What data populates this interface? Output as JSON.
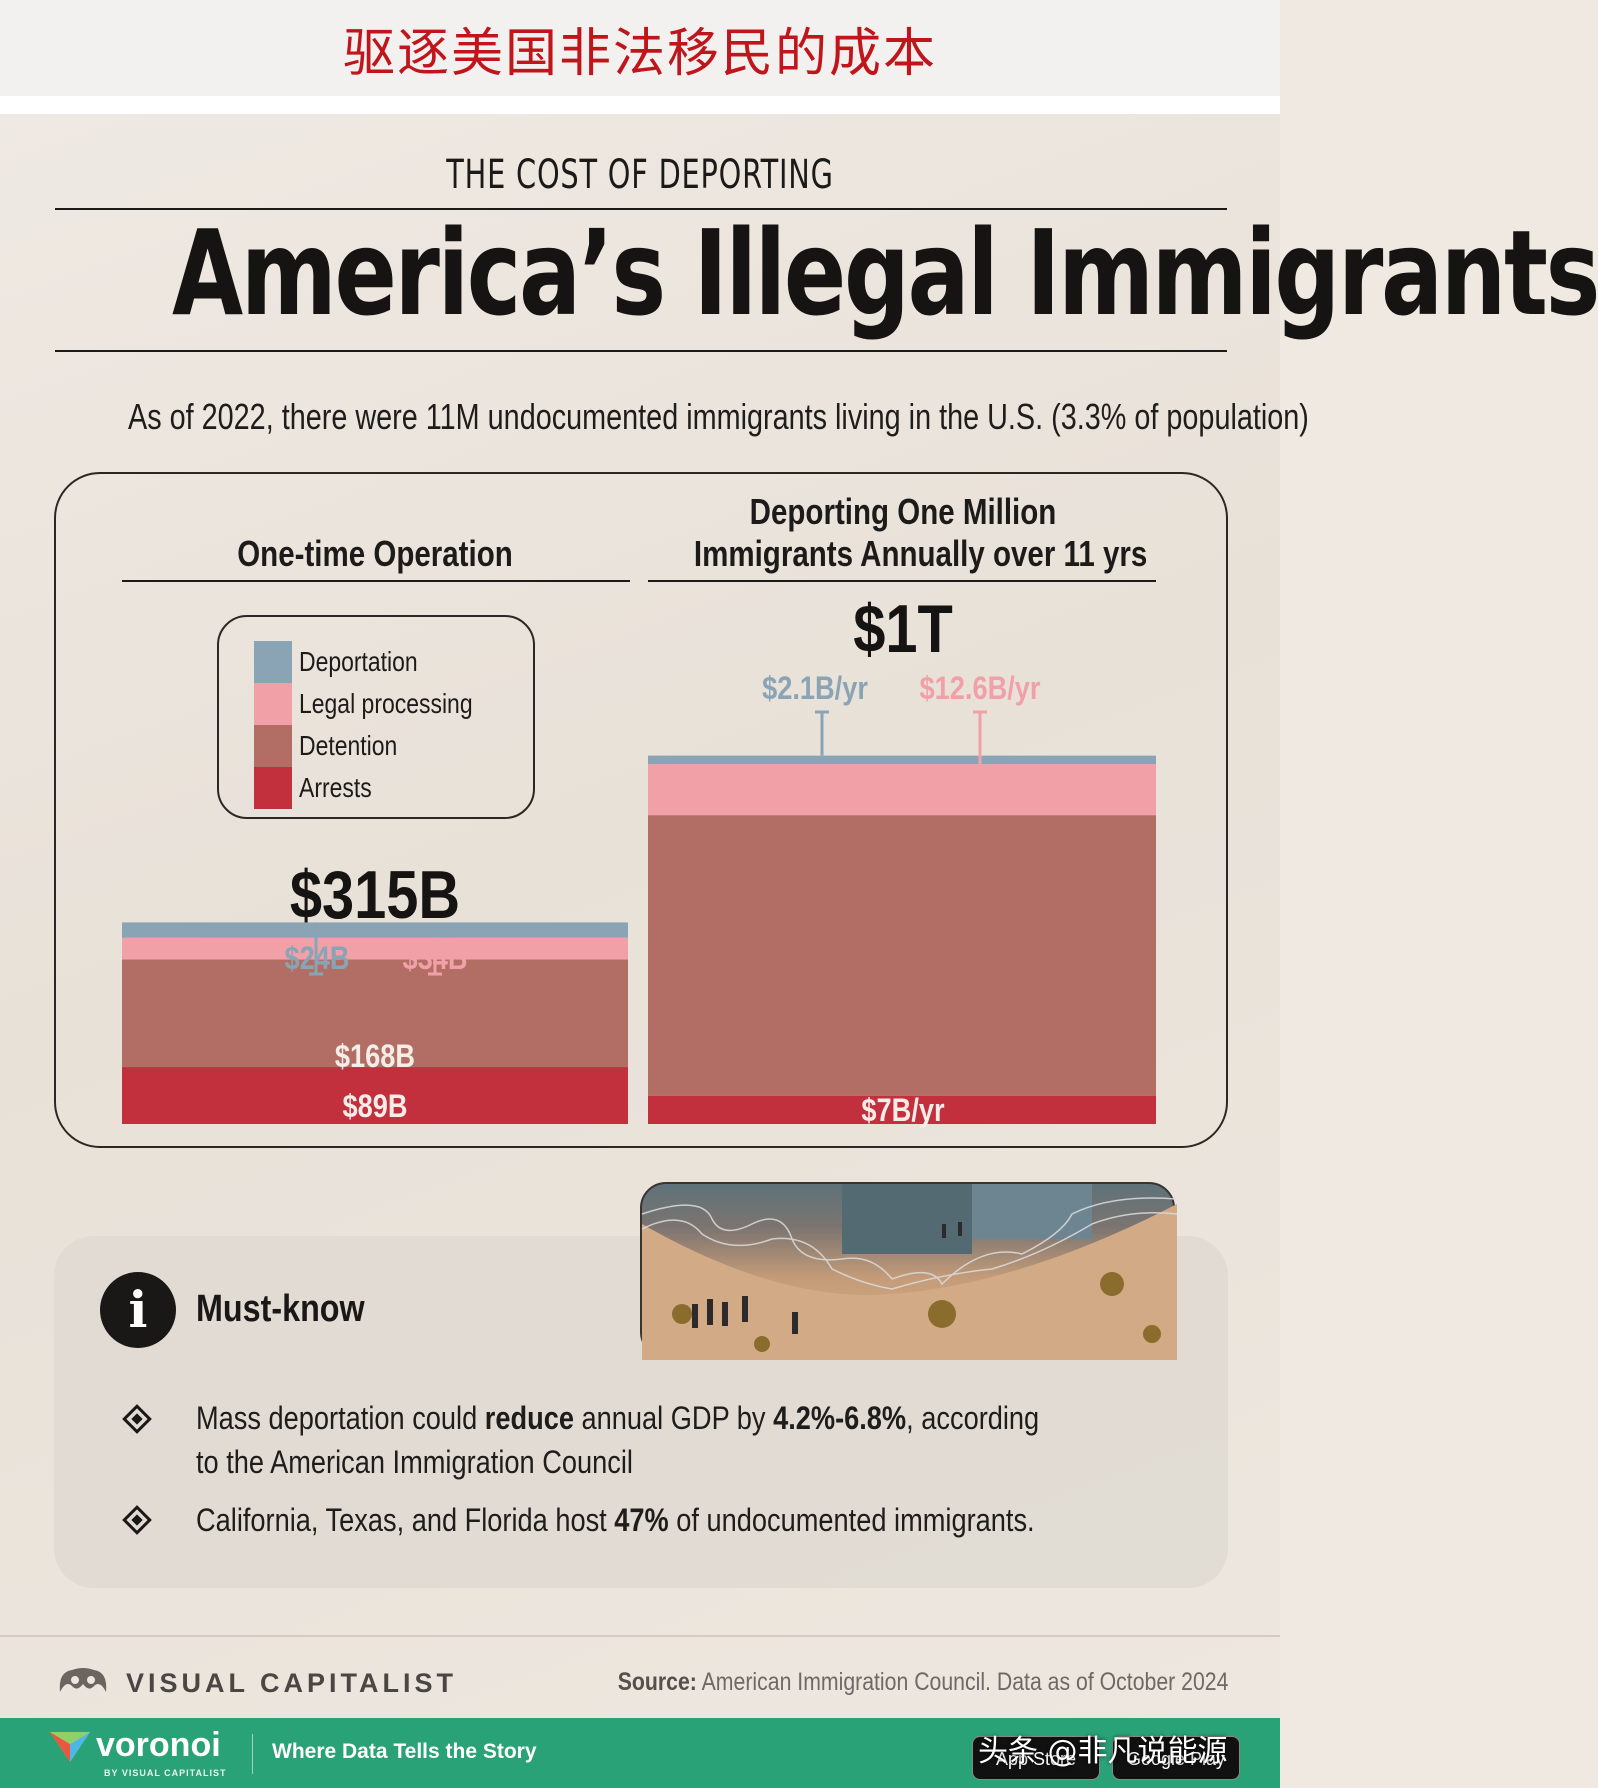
{
  "top_banner": "驱逐美国非法移民的成本",
  "kicker": "THE COST OF DEPORTING",
  "headline": "America’s Illegal Immigrants",
  "subtitle": "As of 2022, there were 11M undocumented immigrants living in the U.S. (3.3% of population)",
  "colors": {
    "deportation": "#8aa4b6",
    "legal_processing": "#f2a0a8",
    "detention": "#b26e64",
    "arrests": "#c22f3d",
    "topbar_text": "#c0151a",
    "green_bar": "#2aa278"
  },
  "legend": [
    {
      "key": "deportation",
      "label": "Deportation"
    },
    {
      "key": "legal_processing",
      "label": "Legal processing"
    },
    {
      "key": "detention",
      "label": "Detention"
    },
    {
      "key": "arrests",
      "label": "Arrests"
    }
  ],
  "chart_data": [
    {
      "type": "bar",
      "stacked": true,
      "title": "One-time Operation",
      "total_label": "$315B",
      "total_billion_usd": 315,
      "series": [
        {
          "name": "Deportation",
          "value_billion_usd": 24,
          "label": "$24B"
        },
        {
          "name": "Legal processing",
          "value_billion_usd": 34,
          "label": "$34B"
        },
        {
          "name": "Detention",
          "value_billion_usd": 168,
          "label": "$168B"
        },
        {
          "name": "Arrests",
          "value_billion_usd": 89,
          "label": "$89B"
        }
      ]
    },
    {
      "type": "bar",
      "stacked": true,
      "title_line1": "Deporting One Million",
      "title_line2": "Immigrants Annually over 11 yrs",
      "total_label": "$1T",
      "total_billion_usd": 1000,
      "series": [
        {
          "name": "Deportation",
          "label": "$2.1B/yr",
          "value_billion_usd_per_year": 2.1
        },
        {
          "name": "Legal processing",
          "label": "$12.6B/yr",
          "value_billion_usd_per_year": 12.6
        },
        {
          "name": "Detention",
          "label": "",
          "value_billion_usd_per_year": 69.3
        },
        {
          "name": "Arrests",
          "label": "$7B/yr",
          "value_billion_usd_per_year": 7
        }
      ]
    }
  ],
  "must_know": {
    "title": "Must-know",
    "bullets": [
      {
        "parts": [
          "Mass deportation could ",
          "reduce",
          " annual GDP by ",
          "4.2%-6.8%",
          ", according to the American Immigration Council"
        ]
      },
      {
        "parts": [
          "California, Texas, and Florida host ",
          "47%",
          " of undocumented immigrants."
        ]
      }
    ]
  },
  "footer": {
    "brand": "VISUAL CAPITALIST",
    "source_label": "Source:",
    "source_text": "American Immigration Council. Data as of October 2024"
  },
  "bottom_bar": {
    "logo": "voronoi",
    "by": "BY VISUAL CAPITALIST",
    "tagline": "Where Data Tells the Story",
    "app_store": "App Store",
    "google_play": "Google Play",
    "watermark": "头条 @非凡说能源"
  }
}
